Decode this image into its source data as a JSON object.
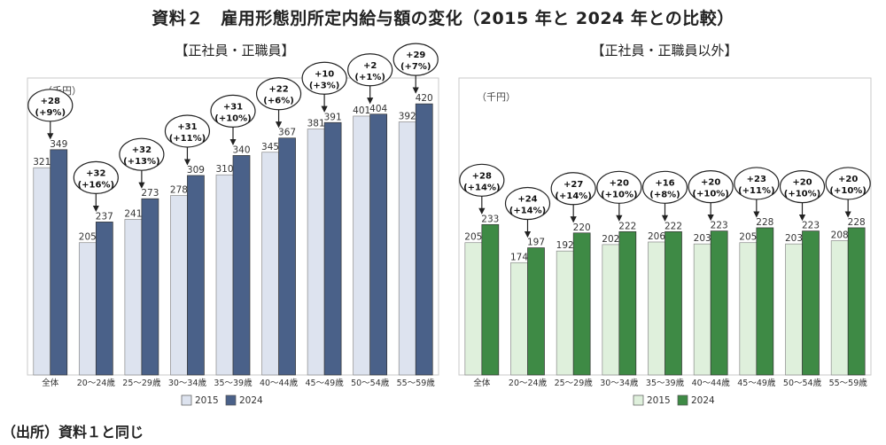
{
  "title": "資料２　雇用形態別所定内給与額の変化（2015 年と 2024 年との比較）",
  "source": "（出所）資料１と同じ",
  "chart_data": [
    {
      "type": "bar",
      "title": "【正社員・正職員】",
      "unit": "（千円）",
      "categories": [
        "全体",
        "20～24歳",
        "25～29歳",
        "30～34歳",
        "35～39歳",
        "40～44歳",
        "45～49歳",
        "50～54歳",
        "55～59歳"
      ],
      "series": [
        {
          "name": "2015",
          "color": "#dde3ef",
          "values": [
            321,
            205,
            241,
            278,
            310,
            345,
            381,
            401,
            392
          ]
        },
        {
          "name": "2024",
          "color": "#4a6189",
          "values": [
            349,
            237,
            273,
            309,
            340,
            367,
            391,
            404,
            420
          ]
        }
      ],
      "annotations": [
        {
          "diff": "+28",
          "pct": "(+9%)"
        },
        {
          "diff": "+32",
          "pct": "(+16%)"
        },
        {
          "diff": "+32",
          "pct": "(+13%)"
        },
        {
          "diff": "+31",
          "pct": "(+11%)"
        },
        {
          "diff": "+31",
          "pct": "(+10%)"
        },
        {
          "diff": "+22",
          "pct": "(+6%)"
        },
        {
          "diff": "+10",
          "pct": "(+3%)"
        },
        {
          "diff": "+2",
          "pct": "(+1%)"
        },
        {
          "diff": "+29",
          "pct": "(+7%)"
        }
      ],
      "ylim": [
        0,
        460
      ],
      "legend_position": "bottom-center"
    },
    {
      "type": "bar",
      "title": "【正社員・正職員以外】",
      "unit": "（千円）",
      "categories": [
        "全体",
        "20～24歳",
        "25～29歳",
        "30～34歳",
        "35～39歳",
        "40～44歳",
        "45～49歳",
        "50～54歳",
        "55～59歳"
      ],
      "series": [
        {
          "name": "2015",
          "color": "#dff0dc",
          "values": [
            205,
            174,
            192,
            202,
            206,
            203,
            205,
            203,
            208
          ]
        },
        {
          "name": "2024",
          "color": "#3e8a45",
          "values": [
            233,
            197,
            220,
            222,
            222,
            223,
            228,
            223,
            228
          ]
        }
      ],
      "annotations": [
        {
          "diff": "+28",
          "pct": "(+14%)"
        },
        {
          "diff": "+24",
          "pct": "(+14%)"
        },
        {
          "diff": "+27",
          "pct": "(+14%)"
        },
        {
          "diff": "+20",
          "pct": "(+10%)"
        },
        {
          "diff": "+16",
          "pct": "(+8%)"
        },
        {
          "diff": "+20",
          "pct": "(+10%)"
        },
        {
          "diff": "+23",
          "pct": "(+11%)"
        },
        {
          "diff": "+20",
          "pct": "(+10%)"
        },
        {
          "diff": "+20",
          "pct": "(+10%)"
        }
      ],
      "ylim": [
        0,
        460
      ],
      "legend_position": "bottom-center"
    }
  ]
}
